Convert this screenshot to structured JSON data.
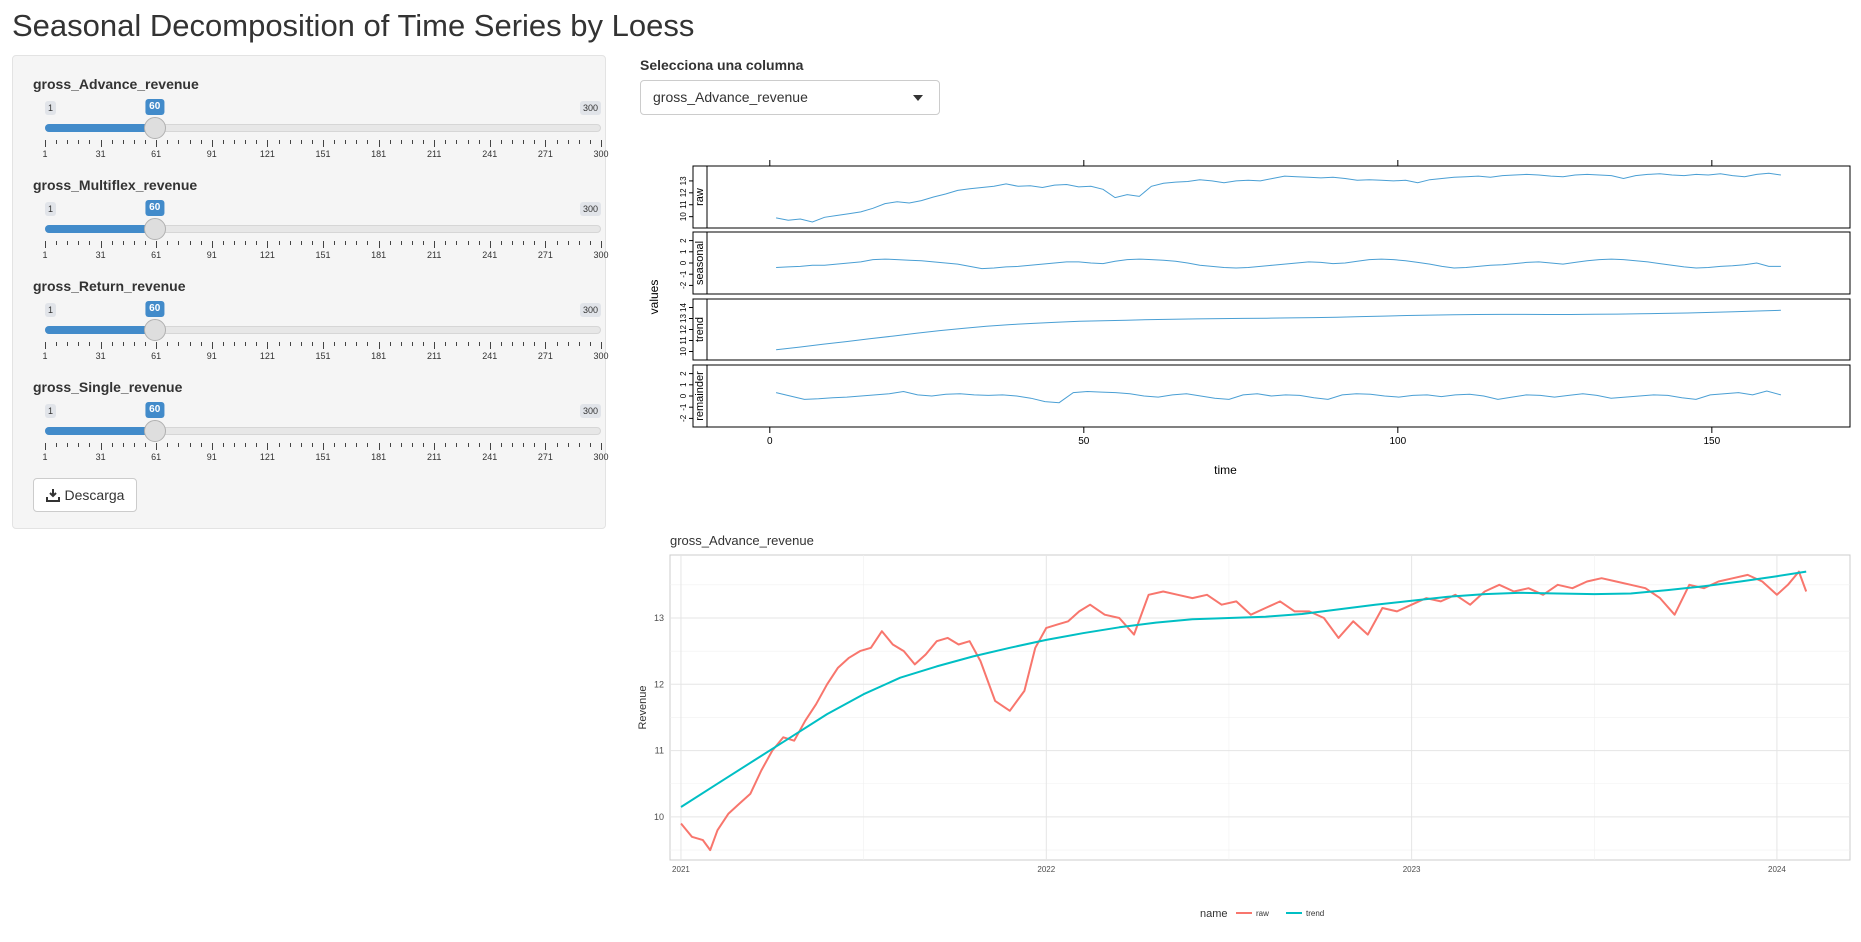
{
  "page": {
    "title": "Seasonal Decomposition of Time Series by Loess"
  },
  "sliders": [
    {
      "label": "gross_Advance_revenue",
      "min": 1,
      "max": 300,
      "value": 60
    },
    {
      "label": "gross_Multiflex_revenue",
      "min": 1,
      "max": 300,
      "value": 60
    },
    {
      "label": "gross_Return_revenue",
      "min": 1,
      "max": 300,
      "value": 60
    },
    {
      "label": "gross_Single_revenue",
      "min": 1,
      "max": 300,
      "value": 60
    }
  ],
  "slider_ticks": [
    "1",
    "31",
    "61",
    "91",
    "121",
    "151",
    "181",
    "211",
    "241",
    "271",
    "300"
  ],
  "download_button": {
    "label": "Descarga",
    "icon": "download-icon"
  },
  "column_select": {
    "label": "Selecciona una columna",
    "value": "gross_Advance_revenue"
  },
  "colors": {
    "accent": "#428bca",
    "raw": "#F8766D",
    "trend": "#00BFC4",
    "stl_line": "#4a9fd4"
  },
  "chart_data": [
    {
      "type": "line",
      "xlabel": "time",
      "ylabel": "values",
      "x_ticks": [
        0,
        50,
        100,
        150
      ],
      "panels": [
        {
          "name": "raw",
          "yticks": [
            "10",
            "11",
            "12",
            "13"
          ],
          "ylim": [
            9.3,
            14.0
          ],
          "values": [
            9.9,
            9.7,
            9.8,
            9.55,
            9.95,
            10.1,
            10.25,
            10.4,
            10.7,
            11.1,
            11.25,
            11.15,
            11.35,
            11.65,
            11.9,
            12.2,
            12.35,
            12.45,
            12.55,
            12.75,
            12.55,
            12.6,
            12.45,
            12.65,
            12.7,
            12.5,
            12.55,
            12.3,
            11.6,
            11.85,
            11.7,
            12.55,
            12.8,
            12.9,
            12.95,
            13.1,
            13.0,
            12.85,
            13.0,
            13.05,
            13.0,
            13.2,
            13.4,
            13.35,
            13.3,
            13.25,
            13.3,
            13.2,
            13.05,
            13.1,
            13.05,
            13.0,
            13.05,
            12.85,
            13.1,
            13.2,
            13.3,
            13.35,
            13.4,
            13.3,
            13.45,
            13.5,
            13.55,
            13.5,
            13.4,
            13.35,
            13.5,
            13.55,
            13.5,
            13.45,
            13.2,
            13.45,
            13.55,
            13.6,
            13.5,
            13.45,
            13.55,
            13.5,
            13.6,
            13.45,
            13.35,
            13.55,
            13.65,
            13.5
          ]
        },
        {
          "name": "seasonal",
          "yticks": [
            "-2",
            "-1",
            "0",
            "1",
            "2"
          ],
          "ylim": [
            -2.5,
            2.5
          ],
          "values": [
            -0.4,
            -0.35,
            -0.3,
            -0.2,
            -0.2,
            -0.1,
            0.0,
            0.1,
            0.3,
            0.35,
            0.3,
            0.25,
            0.2,
            0.1,
            0.0,
            -0.1,
            -0.3,
            -0.5,
            -0.45,
            -0.35,
            -0.3,
            -0.2,
            -0.1,
            0.0,
            0.1,
            0.1,
            0.0,
            -0.05,
            0.15,
            0.3,
            0.35,
            0.3,
            0.25,
            0.15,
            0.0,
            -0.2,
            -0.3,
            -0.4,
            -0.45,
            -0.4,
            -0.3,
            -0.2,
            -0.1,
            0.0,
            0.1,
            0.05,
            -0.05,
            0.0,
            0.15,
            0.3,
            0.35,
            0.3,
            0.2,
            0.05,
            -0.1,
            -0.3,
            -0.45,
            -0.4,
            -0.3,
            -0.2,
            -0.15,
            -0.05,
            0.05,
            0.1,
            0.0,
            -0.1,
            0.05,
            0.2,
            0.3,
            0.35,
            0.3,
            0.2,
            0.1,
            -0.05,
            -0.2,
            -0.35,
            -0.45,
            -0.4,
            -0.3,
            -0.25,
            -0.15,
            0.0,
            -0.3,
            -0.3
          ]
        },
        {
          "name": "trend",
          "yticks": [
            "10",
            "11",
            "12",
            "13",
            "14"
          ],
          "ylim": [
            9.5,
            14.5
          ],
          "values": [
            10.15,
            10.4,
            10.65,
            10.9,
            11.15,
            11.4,
            11.65,
            11.9,
            12.1,
            12.3,
            12.45,
            12.55,
            12.65,
            12.75,
            12.8,
            12.85,
            12.9,
            12.93,
            12.96,
            12.99,
            13.01,
            13.03,
            13.05,
            13.08,
            13.12,
            13.17,
            13.22,
            13.27,
            13.31,
            13.34,
            13.36,
            13.37,
            13.37,
            13.36,
            13.36,
            13.38,
            13.4,
            13.43,
            13.46,
            13.5,
            13.55,
            13.62,
            13.68,
            13.75
          ]
        },
        {
          "name": "remainder",
          "yticks": [
            "-2",
            "-1",
            "0",
            "1",
            "2"
          ],
          "ylim": [
            -2.5,
            2.5
          ],
          "values": [
            0.3,
            0.0,
            -0.3,
            -0.25,
            -0.15,
            -0.1,
            0.0,
            0.1,
            0.2,
            0.4,
            0.1,
            0.0,
            0.15,
            0.2,
            0.1,
            0.05,
            0.1,
            0.0,
            -0.2,
            -0.5,
            -0.6,
            0.3,
            0.4,
            0.35,
            0.3,
            0.2,
            0.0,
            -0.1,
            0.1,
            0.2,
            0.0,
            -0.2,
            -0.3,
            0.1,
            0.2,
            0.0,
            0.1,
            0.05,
            -0.15,
            -0.3,
            0.1,
            0.2,
            0.15,
            0.0,
            -0.1,
            0.05,
            0.1,
            -0.05,
            0.1,
            0.15,
            0.0,
            -0.3,
            -0.1,
            0.1,
            0.05,
            -0.1,
            0.05,
            0.2,
            0.05,
            -0.2,
            -0.1,
            0.0,
            0.1,
            0.05,
            -0.15,
            -0.3,
            0.1,
            0.2,
            0.3,
            0.1,
            0.45,
            0.1
          ]
        }
      ]
    },
    {
      "type": "line",
      "title": "gross_Advance_revenue",
      "xlabel": "",
      "ylabel": "Revenue",
      "ylim": [
        9.35,
        13.95
      ],
      "y_ticks": [
        10,
        11,
        12,
        13
      ],
      "x_ticks": [
        "2021",
        "2022",
        "2023",
        "2024"
      ],
      "legend": {
        "title": "name",
        "position": "bottom"
      },
      "series": [
        {
          "name": "raw",
          "x": [
            2021.0,
            2021.03,
            2021.06,
            2021.08,
            2021.1,
            2021.13,
            2021.16,
            2021.19,
            2021.22,
            2021.25,
            2021.28,
            2021.31,
            2021.34,
            2021.37,
            2021.4,
            2021.43,
            2021.46,
            2021.49,
            2021.52,
            2021.55,
            2021.58,
            2021.61,
            2021.64,
            2021.67,
            2021.7,
            2021.73,
            2021.76,
            2021.79,
            2021.82,
            2021.86,
            2021.9,
            2021.94,
            2021.97,
            2022.0,
            2022.03,
            2022.06,
            2022.09,
            2022.12,
            2022.16,
            2022.2,
            2022.24,
            2022.28,
            2022.32,
            2022.36,
            2022.4,
            2022.44,
            2022.48,
            2022.52,
            2022.56,
            2022.6,
            2022.64,
            2022.68,
            2022.72,
            2022.76,
            2022.8,
            2022.84,
            2022.88,
            2022.92,
            2022.96,
            2023.0,
            2023.04,
            2023.08,
            2023.12,
            2023.16,
            2023.2,
            2023.24,
            2023.28,
            2023.32,
            2023.36,
            2023.4,
            2023.44,
            2023.48,
            2023.52,
            2023.56,
            2023.6,
            2023.64,
            2023.68,
            2023.72,
            2023.76,
            2023.8,
            2023.84,
            2023.88,
            2023.92,
            2023.96,
            2024.0,
            2024.03,
            2024.06,
            2024.08
          ],
          "y": [
            9.9,
            9.7,
            9.65,
            9.5,
            9.8,
            10.05,
            10.2,
            10.35,
            10.7,
            11.0,
            11.2,
            11.15,
            11.45,
            11.7,
            12.0,
            12.25,
            12.4,
            12.5,
            12.55,
            12.8,
            12.6,
            12.5,
            12.3,
            12.45,
            12.65,
            12.7,
            12.6,
            12.65,
            12.35,
            11.75,
            11.6,
            11.9,
            12.55,
            12.85,
            12.9,
            12.95,
            13.1,
            13.2,
            13.05,
            13.0,
            12.75,
            13.35,
            13.4,
            13.35,
            13.3,
            13.35,
            13.2,
            13.25,
            13.05,
            13.15,
            13.25,
            13.1,
            13.1,
            13.0,
            12.7,
            12.95,
            12.75,
            13.15,
            13.1,
            13.2,
            13.3,
            13.25,
            13.35,
            13.2,
            13.4,
            13.5,
            13.4,
            13.45,
            13.35,
            13.5,
            13.45,
            13.55,
            13.6,
            13.55,
            13.5,
            13.45,
            13.3,
            13.05,
            13.5,
            13.45,
            13.55,
            13.6,
            13.65,
            13.55,
            13.35,
            13.5,
            13.7,
            13.4
          ]
        },
        {
          "name": "trend",
          "x": [
            2021.0,
            2021.1,
            2021.2,
            2021.3,
            2021.4,
            2021.5,
            2021.6,
            2021.7,
            2021.8,
            2021.9,
            2022.0,
            2022.1,
            2022.2,
            2022.3,
            2022.4,
            2022.5,
            2022.6,
            2022.7,
            2022.8,
            2022.9,
            2023.0,
            2023.1,
            2023.2,
            2023.3,
            2023.4,
            2023.5,
            2023.6,
            2023.7,
            2023.8,
            2023.9,
            2024.0,
            2024.08
          ],
          "y": [
            10.15,
            10.5,
            10.85,
            11.2,
            11.55,
            11.85,
            12.1,
            12.27,
            12.42,
            12.55,
            12.67,
            12.77,
            12.86,
            12.93,
            12.98,
            13.0,
            13.02,
            13.06,
            13.13,
            13.2,
            13.26,
            13.32,
            13.36,
            13.38,
            13.37,
            13.36,
            13.37,
            13.42,
            13.48,
            13.55,
            13.63,
            13.7
          ]
        }
      ]
    }
  ]
}
